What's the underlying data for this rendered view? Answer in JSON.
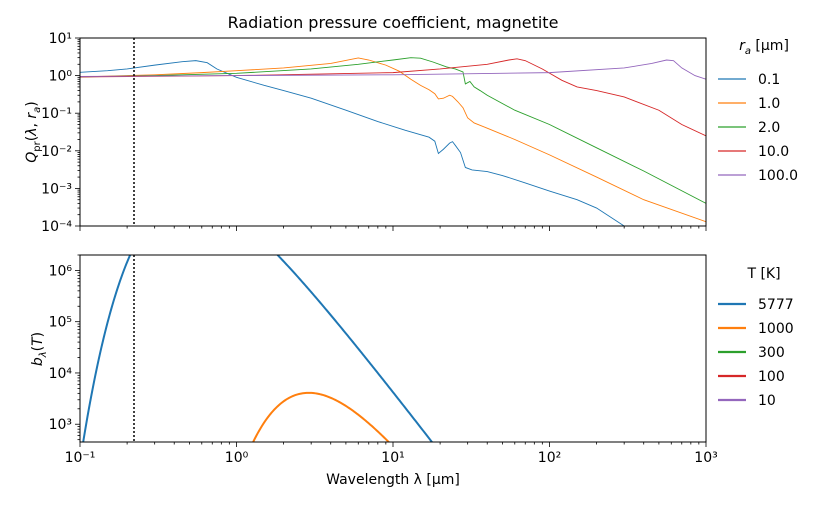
{
  "figure": {
    "title": "Radiation pressure coefficient, magnetite",
    "xlabel": "Wavelength λ [μm]"
  },
  "colors": {
    "blue": "#1f77b4",
    "orange": "#ff7f0e",
    "green": "#2ca02c",
    "red": "#d62728",
    "purple": "#9467bd",
    "axis": "#000000"
  },
  "chart_data": [
    {
      "type": "line",
      "title": "Radiation pressure coefficient, magnetite",
      "xlabel": "",
      "ylabel": "Q_pr(λ, r_a)",
      "xscale": "log",
      "yscale": "log",
      "xlim": [
        0.1,
        1000
      ],
      "ylim": [
        0.0001,
        10
      ],
      "xticks": [
        0.1,
        1,
        10,
        100,
        1000
      ],
      "xtick_labels": [
        "10⁻¹",
        "10⁰",
        "10¹",
        "10²",
        "10³"
      ],
      "yticks": [
        0.0001,
        0.001,
        0.01,
        0.1,
        1,
        10
      ],
      "ytick_labels": [
        "10⁻⁴",
        "10⁻³",
        "10⁻²",
        "10⁻¹",
        "10⁰",
        "10¹"
      ],
      "vline_x": 0.2,
      "legend": {
        "title": "r_a [μm]",
        "loc": "outside right"
      },
      "series": [
        {
          "name": "0.1",
          "color": "#1f77b4",
          "points": [
            [
              0.1,
              1.22
            ],
            [
              0.15,
              1.35
            ],
            [
              0.2,
              1.5
            ],
            [
              0.3,
              1.9
            ],
            [
              0.45,
              2.35
            ],
            [
              0.55,
              2.5
            ],
            [
              0.65,
              2.2
            ],
            [
              0.75,
              1.5
            ],
            [
              1.0,
              0.9
            ],
            [
              1.5,
              0.55
            ],
            [
              2,
              0.4
            ],
            [
              3,
              0.25
            ],
            [
              5,
              0.12
            ],
            [
              8,
              0.06
            ],
            [
              12,
              0.035
            ],
            [
              17,
              0.023
            ],
            [
              18.5,
              0.018
            ],
            [
              19.5,
              0.0085
            ],
            [
              21,
              0.011
            ],
            [
              23,
              0.016
            ],
            [
              24,
              0.0175
            ],
            [
              25,
              0.014
            ],
            [
              27,
              0.009
            ],
            [
              29,
              0.0036
            ],
            [
              32,
              0.0031
            ],
            [
              40,
              0.0028
            ],
            [
              50,
              0.0022
            ],
            [
              70,
              0.0014
            ],
            [
              100,
              0.00085
            ],
            [
              150,
              0.0005
            ],
            [
              200,
              0.0003
            ],
            [
              300,
              0.0001
            ]
          ]
        },
        {
          "name": "1.0",
          "color": "#ff7f0e",
          "points": [
            [
              0.1,
              0.92
            ],
            [
              0.3,
              1.05
            ],
            [
              0.6,
              1.2
            ],
            [
              1,
              1.35
            ],
            [
              2,
              1.6
            ],
            [
              4,
              2.1
            ],
            [
              6,
              2.95
            ],
            [
              7,
              2.6
            ],
            [
              9,
              1.9
            ],
            [
              11,
              1.3
            ],
            [
              13,
              0.8
            ],
            [
              15,
              0.55
            ],
            [
              17,
              0.42
            ],
            [
              18.5,
              0.33
            ],
            [
              19.5,
              0.24
            ],
            [
              21,
              0.25
            ],
            [
              23,
              0.3
            ],
            [
              24,
              0.28
            ],
            [
              26,
              0.2
            ],
            [
              28,
              0.14
            ],
            [
              30,
              0.075
            ],
            [
              33,
              0.055
            ],
            [
              40,
              0.04
            ],
            [
              60,
              0.02
            ],
            [
              100,
              0.0078
            ],
            [
              200,
              0.002
            ],
            [
              400,
              0.0005
            ],
            [
              1000,
              0.00013
            ]
          ]
        },
        {
          "name": "2.0",
          "color": "#2ca02c",
          "points": [
            [
              0.1,
              0.92
            ],
            [
              0.3,
              1.0
            ],
            [
              1,
              1.15
            ],
            [
              3,
              1.5
            ],
            [
              6,
              2.0
            ],
            [
              10,
              2.6
            ],
            [
              13,
              3.0
            ],
            [
              15,
              2.9
            ],
            [
              18,
              2.3
            ],
            [
              22,
              1.7
            ],
            [
              25,
              1.5
            ],
            [
              28,
              1.25
            ],
            [
              29,
              0.6
            ],
            [
              31,
              0.7
            ],
            [
              33,
              0.5
            ],
            [
              36,
              0.4
            ],
            [
              40,
              0.3
            ],
            [
              60,
              0.12
            ],
            [
              100,
              0.05
            ],
            [
              200,
              0.012
            ],
            [
              400,
              0.0029
            ],
            [
              1000,
              0.0004
            ]
          ]
        },
        {
          "name": "10.0",
          "color": "#d62728",
          "points": [
            [
              0.1,
              0.92
            ],
            [
              1,
              1.0
            ],
            [
              10,
              1.2
            ],
            [
              20,
              1.5
            ],
            [
              40,
              2.0
            ],
            [
              55,
              2.6
            ],
            [
              62,
              2.8
            ],
            [
              70,
              2.5
            ],
            [
              90,
              1.5
            ],
            [
              120,
              0.75
            ],
            [
              150,
              0.5
            ],
            [
              200,
              0.4
            ],
            [
              300,
              0.27
            ],
            [
              500,
              0.12
            ],
            [
              700,
              0.05
            ],
            [
              1000,
              0.025
            ]
          ]
        },
        {
          "name": "100.0",
          "color": "#9467bd",
          "points": [
            [
              0.1,
              0.95
            ],
            [
              1,
              1.0
            ],
            [
              10,
              1.05
            ],
            [
              100,
              1.2
            ],
            [
              300,
              1.6
            ],
            [
              450,
              2.1
            ],
            [
              560,
              2.6
            ],
            [
              620,
              2.5
            ],
            [
              700,
              1.6
            ],
            [
              850,
              1.0
            ],
            [
              1000,
              0.8
            ]
          ]
        }
      ]
    },
    {
      "type": "line",
      "title": "",
      "xlabel": "Wavelength λ [μm]",
      "ylabel": "b_λ(T)",
      "xscale": "log",
      "yscale": "log",
      "xlim": [
        0.1,
        1000
      ],
      "ylim": [
        450,
        2000000
      ],
      "xticks": [
        0.1,
        1,
        10,
        100,
        1000
      ],
      "xtick_labels": [
        "10⁻¹",
        "10⁰",
        "10¹",
        "10²",
        "10³"
      ],
      "yticks": [
        1000,
        10000,
        100000,
        1000000
      ],
      "ytick_labels": [
        "10³",
        "10⁴",
        "10⁵",
        "10⁶"
      ],
      "vline_x": 0.2,
      "legend": {
        "title": "T [K]",
        "loc": "outside right"
      },
      "series": [
        {
          "name": "5777",
          "color": "#1f77b4",
          "temperature_K": 5777
        },
        {
          "name": "1000",
          "color": "#ff7f0e",
          "temperature_K": 1000
        },
        {
          "name": "300",
          "color": "#2ca02c",
          "temperature_K": 300
        },
        {
          "name": "100",
          "color": "#d62728",
          "temperature_K": 100
        },
        {
          "name": "10",
          "color": "#9467bd",
          "temperature_K": 10
        }
      ]
    }
  ]
}
